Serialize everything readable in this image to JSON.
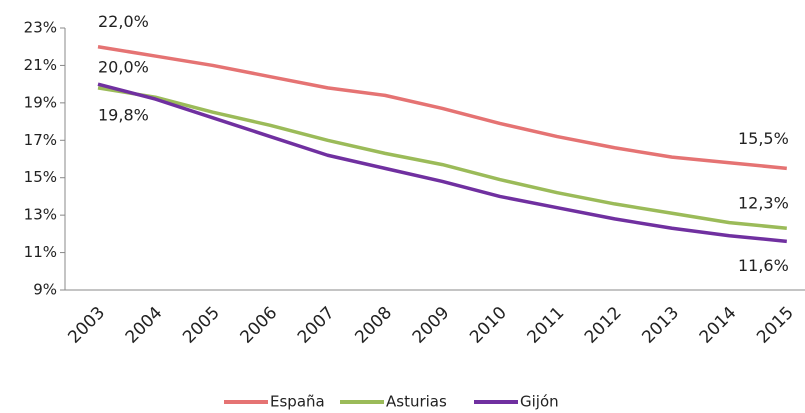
{
  "chart_data": {
    "type": "line",
    "categories": [
      "2003",
      "2004",
      "2005",
      "2006",
      "2007",
      "2008",
      "2009",
      "2010",
      "2011",
      "2012",
      "2013",
      "2014",
      "2015"
    ],
    "series": [
      {
        "name": "España",
        "color": "#e57373",
        "values": [
          22.0,
          21.5,
          21.0,
          20.4,
          19.8,
          19.4,
          18.7,
          17.9,
          17.2,
          16.6,
          16.1,
          15.8,
          15.5
        ],
        "value_labels": [
          "22,0%",
          null,
          null,
          null,
          null,
          null,
          null,
          null,
          null,
          null,
          null,
          null,
          "15,5%"
        ]
      },
      {
        "name": "Asturias",
        "color": "#9bbb59",
        "values": [
          19.8,
          19.3,
          18.5,
          17.8,
          17.0,
          16.3,
          15.7,
          14.9,
          14.2,
          13.6,
          13.1,
          12.6,
          12.3
        ],
        "value_labels": [
          "19,8%",
          null,
          null,
          null,
          null,
          null,
          null,
          null,
          null,
          null,
          null,
          null,
          "12,3%"
        ]
      },
      {
        "name": "Gijón",
        "color": "#7030a0",
        "values": [
          20.0,
          19.2,
          18.2,
          17.2,
          16.2,
          15.5,
          14.8,
          14.0,
          13.4,
          12.8,
          12.3,
          11.9,
          11.6
        ],
        "value_labels": [
          "20,0%",
          null,
          null,
          null,
          null,
          null,
          null,
          null,
          null,
          null,
          null,
          null,
          "11,6%"
        ]
      }
    ],
    "ylim": [
      9,
      23
    ],
    "yticks": [
      {
        "value": 9,
        "label": "9%"
      },
      {
        "value": 11,
        "label": "11%"
      },
      {
        "value": 13,
        "label": "13%"
      },
      {
        "value": 15,
        "label": "15%"
      },
      {
        "value": 17,
        "label": "17%"
      },
      {
        "value": 19,
        "label": "19%"
      },
      {
        "value": 21,
        "label": "21%"
      },
      {
        "value": 23,
        "label": "23%"
      }
    ],
    "grid": false,
    "legend": "bottom"
  }
}
